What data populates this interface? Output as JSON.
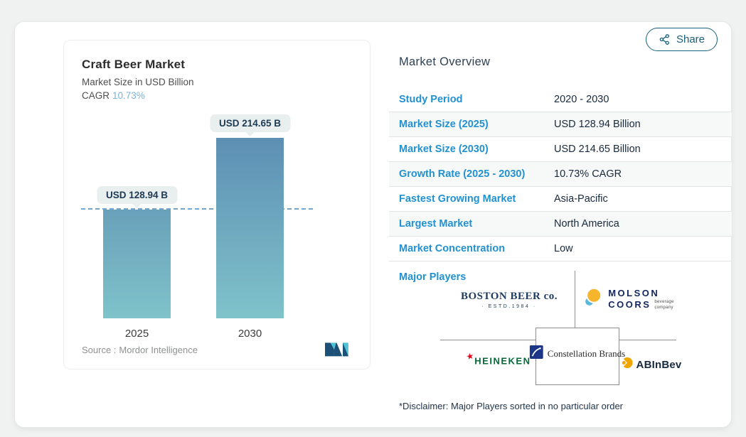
{
  "share_button": {
    "label": "Share"
  },
  "chart_panel": {
    "title": "Craft Beer Market",
    "subtitle": "Market Size in USD Billion",
    "cagr_label": "CAGR",
    "cagr_value": "10.73%",
    "source_label": "Source :",
    "source_name": "Mordor Intelligence"
  },
  "chart_data": {
    "type": "bar",
    "title": "Craft Beer Market",
    "subtitle": "Market Size in USD Billion",
    "unit": "USD Billion",
    "cagr_percent": 10.73,
    "categories": [
      "2025",
      "2030"
    ],
    "values": [
      128.94,
      214.65
    ],
    "value_labels": [
      "USD 128.94 B",
      "USD 214.65 B"
    ],
    "ylim": [
      0,
      235
    ],
    "reference_line": 128.94,
    "grid": false,
    "legend": "none",
    "bar_gradient_top": "#5d8fb4",
    "bar_gradient_bottom": "#7fc3ca",
    "reference_line_color": "#74a7d0"
  },
  "market_overview": {
    "heading": "Market Overview",
    "rows": [
      {
        "label": "Study Period",
        "value": "2020 - 2030"
      },
      {
        "label": "Market Size (2025)",
        "value": "USD 128.94 Billion"
      },
      {
        "label": "Market Size (2030)",
        "value": "USD 214.65 Billion"
      },
      {
        "label": "Growth Rate (2025 - 2030)",
        "value": "10.73% CAGR"
      },
      {
        "label": "Fastest Growing Market",
        "value": "Asia-Pacific"
      },
      {
        "label": "Largest Market",
        "value": "North America"
      },
      {
        "label": "Market Concentration",
        "value": "Low"
      }
    ],
    "major_players_label": "Major Players",
    "players": {
      "boston_beer": {
        "name": "BOSTON BEER co.",
        "tagline": "· ESTD.1984 ·"
      },
      "molson_coors": {
        "line1": "MOLSON",
        "line2": "COORS",
        "tag1": "beverage",
        "tag2": "company"
      },
      "heineken": {
        "name": "HEINEKEN"
      },
      "constellation": {
        "name": "Constellation Brands"
      },
      "abinbev": {
        "name": "ABInBev"
      }
    },
    "disclaimer": "*Disclaimer: Major Players sorted in no particular order"
  },
  "icons": {
    "share": "share-nodes",
    "heineken_star": "★",
    "mordor_logo": "mordor-m-mark"
  },
  "colors": {
    "accent_blue": "#2191d0",
    "dark_navy_text": "#17293c",
    "share_teal": "#19617d",
    "cagr_light_blue": "#7cb3d7",
    "tooltip_bg": "#e9efee",
    "page_bg": "#f0f1f1",
    "row_alt_bg": "#f7f8f8",
    "heineken_green": "#046a38",
    "heineken_red": "#e3001b",
    "molson_yellow": "#f6b52b",
    "molson_blue": "#58b7dd",
    "constellation_navy": "#1c3687",
    "abinbev_gold": "#f0a500",
    "boston_navy": "#1e3a5f"
  }
}
